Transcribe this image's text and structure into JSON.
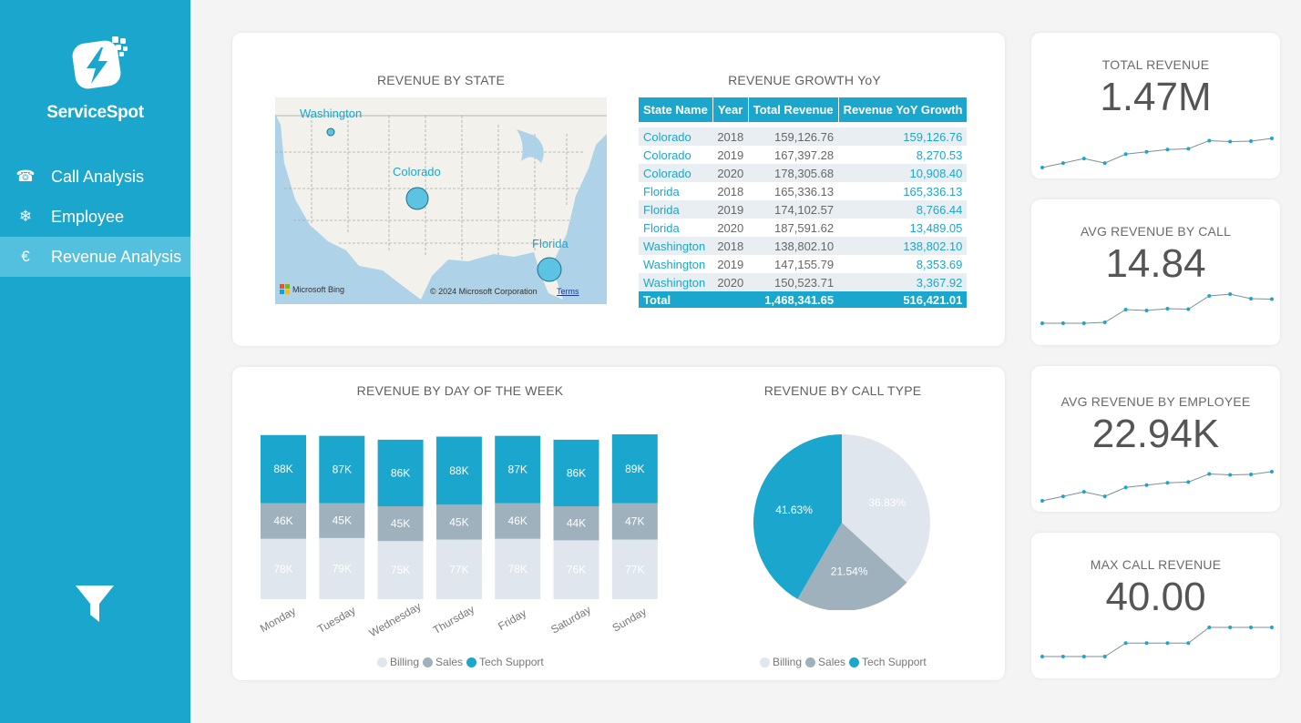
{
  "app": {
    "brand": "ServiceSpot",
    "nav": [
      {
        "label": "Call Analysis",
        "icon": "phone-icon",
        "glyph": "☎"
      },
      {
        "label": "Employee",
        "icon": "snowflake-icon",
        "glyph": "❄"
      },
      {
        "label": "Revenue Analysis",
        "icon": "euro-icon",
        "glyph": "€"
      }
    ],
    "active_nav": "Revenue Analysis"
  },
  "map": {
    "title": "REVENUE BY STATE",
    "labels": [
      "Washington",
      "Colorado",
      "Florida"
    ],
    "attribution": "Microsoft Bing",
    "copyright": "© 2024 Microsoft Corporation",
    "terms": "Terms"
  },
  "table": {
    "title": "REVENUE GROWTH YoY",
    "headers": [
      "State Name",
      "Year",
      "Total Revenue",
      "Revenue YoY Growth"
    ],
    "rows": [
      [
        "Colorado",
        "2018",
        "159,126.76",
        "159,126.76"
      ],
      [
        "Colorado",
        "2019",
        "167,397.28",
        "8,270.53"
      ],
      [
        "Colorado",
        "2020",
        "178,305.68",
        "10,908.40"
      ],
      [
        "Florida",
        "2018",
        "165,336.13",
        "165,336.13"
      ],
      [
        "Florida",
        "2019",
        "174,102.57",
        "8,766.44"
      ],
      [
        "Florida",
        "2020",
        "187,591.62",
        "13,489.05"
      ],
      [
        "Washington",
        "2018",
        "138,802.10",
        "138,802.10"
      ],
      [
        "Washington",
        "2019",
        "147,155.79",
        "8,353.69"
      ],
      [
        "Washington",
        "2020",
        "150,523.71",
        "3,367.92"
      ]
    ],
    "total": [
      "Total",
      "",
      "1,468,341.65",
      "516,421.01"
    ]
  },
  "kpis": [
    {
      "title": "TOTAL REVENUE",
      "value": "1.47M",
      "trend": [
        1,
        2,
        3,
        2,
        4,
        4.5,
        5,
        5.2,
        7,
        6.8,
        6.9,
        7.5
      ]
    },
    {
      "title": "AVG REVENUE BY CALL",
      "value": "14.84",
      "trend": [
        1,
        1,
        1,
        1.2,
        4,
        3.8,
        4.2,
        4.1,
        7,
        7.4,
        6.4,
        6.3
      ]
    },
    {
      "title": "AVG REVENUE BY EMPLOYEE",
      "value": "22.94K",
      "trend": [
        1,
        2,
        3,
        2,
        4,
        4.5,
        5,
        5.2,
        7,
        6.8,
        6.9,
        7.5
      ]
    },
    {
      "title": "MAX CALL REVENUE",
      "value": "40.00",
      "trend": [
        1,
        1,
        1,
        1,
        4,
        4,
        4,
        4,
        7.5,
        7.5,
        7.5,
        7.5
      ]
    }
  ],
  "legend": [
    "Billing",
    "Sales",
    "Tech Support"
  ],
  "colors": {
    "billing": "#dfe6ed",
    "sales": "#9fb1bd",
    "tech": "#1ba6cd",
    "accent": "#1ba6cd"
  },
  "chart_data": [
    {
      "type": "bar",
      "stacked": true,
      "title": "REVENUE BY DAY OF THE WEEK",
      "categories": [
        "Monday",
        "Tuesday",
        "Wednesday",
        "Thursday",
        "Friday",
        "Saturday",
        "Sunday"
      ],
      "series": [
        {
          "name": "Billing",
          "values": [
            78,
            79,
            75,
            77,
            78,
            76,
            77
          ],
          "labels": [
            "78K",
            "79K",
            "75K",
            "77K",
            "78K",
            "76K",
            "77K"
          ]
        },
        {
          "name": "Sales",
          "values": [
            46,
            45,
            45,
            45,
            46,
            44,
            47
          ],
          "labels": [
            "46K",
            "45K",
            "45K",
            "45K",
            "46K",
            "44K",
            "47K"
          ]
        },
        {
          "name": "Tech Support",
          "values": [
            88,
            87,
            86,
            88,
            87,
            86,
            89
          ],
          "labels": [
            "88K",
            "87K",
            "86K",
            "88K",
            "87K",
            "86K",
            "89K"
          ]
        }
      ],
      "legend": "bottom"
    },
    {
      "type": "pie",
      "title": "REVENUE BY CALL TYPE",
      "slices": [
        {
          "name": "Billing",
          "value": 36.83,
          "label": "36.83%"
        },
        {
          "name": "Sales",
          "value": 21.54,
          "label": "21.54%"
        },
        {
          "name": "Tech Support",
          "value": 41.63,
          "label": "41.63%"
        }
      ],
      "legend": "bottom"
    }
  ]
}
